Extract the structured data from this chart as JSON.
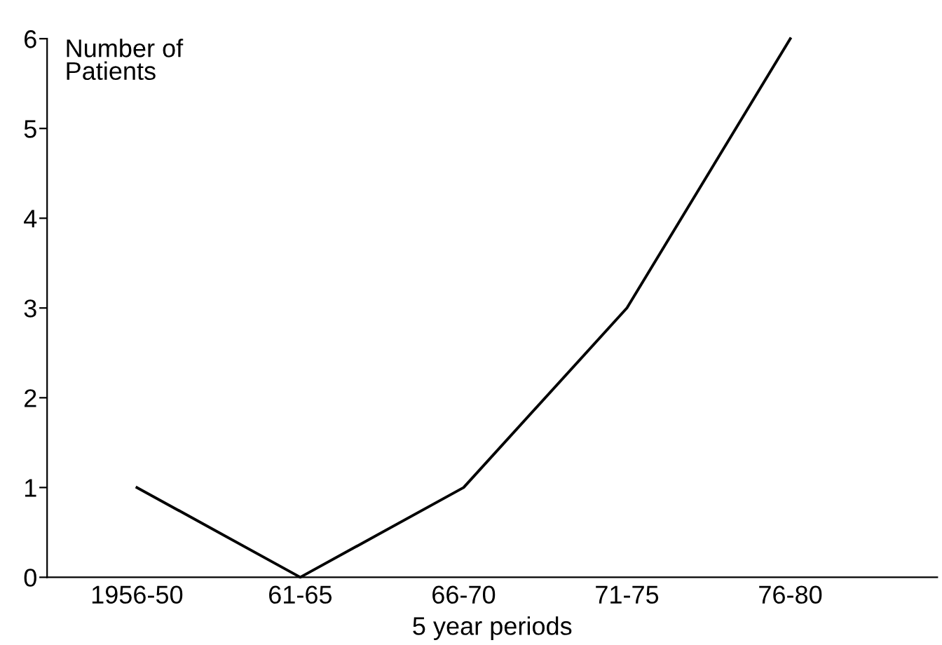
{
  "chart_data": {
    "type": "line",
    "ylabel": "Number of\nPatients",
    "xlabel": "5 year periods",
    "categories": [
      "1956-50",
      "61-65",
      "66-70",
      "71-75",
      "76-80"
    ],
    "series": [
      {
        "color": "#000000",
        "values": [
          1,
          0,
          1,
          3,
          6
        ]
      }
    ],
    "ylim": [
      0,
      6
    ],
    "yticks": [
      0,
      1,
      2,
      3,
      4,
      5,
      6
    ],
    "grid": false,
    "marker": "none",
    "line_style": "solid"
  }
}
